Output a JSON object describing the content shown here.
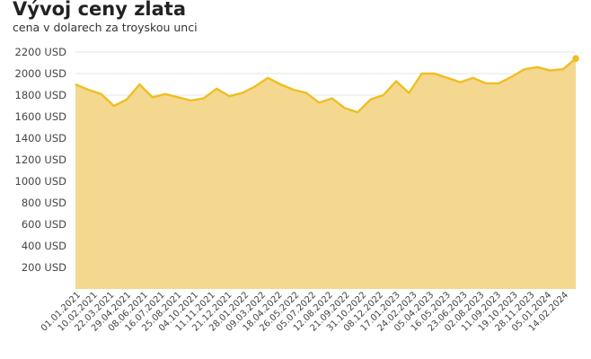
{
  "title": "Vývoj ceny zlata",
  "subtitle": "cena v dolarech za troyskou unci",
  "chart_data": {
    "type": "area",
    "ylim": [
      0,
      2200
    ],
    "yticks": [
      200,
      400,
      600,
      800,
      1000,
      1200,
      1400,
      1600,
      1800,
      2000,
      2200
    ],
    "ytick_suffix": " USD",
    "xlabels": [
      "01.01.2021",
      "10.02.2021",
      "22.03.2021",
      "29.04.2021",
      "08.06.2021",
      "16.07.2021",
      "25.08.2021",
      "04.10.2021",
      "11.11.2021",
      "21.12.2021",
      "28.01.2022",
      "09.03.2022",
      "18.04.2022",
      "26.05.2022",
      "05.07.2022",
      "12.08.2022",
      "21.09.2022",
      "31.10.2022",
      "08.12.2022",
      "17.01.2023",
      "24.02.2023",
      "05.04.2023",
      "16.05.2023",
      "23.06.2023",
      "02.08.2023",
      "11.09.2023",
      "19.10.2023",
      "28.11.2023",
      "05.01.2024",
      "14.02.2024"
    ],
    "x": [
      "2021-01",
      "2021-01",
      "2021-02",
      "2021-03",
      "2021-04",
      "2021-05",
      "2021-06",
      "2021-07",
      "2021-08",
      "2021-09",
      "2021-10",
      "2021-11",
      "2021-12",
      "2022-01",
      "2022-02",
      "2022-03",
      "2022-04",
      "2022-05",
      "2022-06",
      "2022-07",
      "2022-08",
      "2022-09",
      "2022-10",
      "2022-11",
      "2022-12",
      "2023-01",
      "2023-02",
      "2023-03",
      "2023-04",
      "2023-05",
      "2023-06",
      "2023-07",
      "2023-08",
      "2023-09",
      "2023-10",
      "2023-11",
      "2023-12",
      "2024-01",
      "2024-02",
      "2024-03"
    ],
    "series": [
      {
        "values": [
          1900,
          1850,
          1810,
          1700,
          1760,
          1900,
          1780,
          1810,
          1780,
          1750,
          1770,
          1860,
          1790,
          1820,
          1880,
          1960,
          1900,
          1850,
          1820,
          1730,
          1770,
          1680,
          1640,
          1760,
          1800,
          1930,
          1820,
          2000,
          2000,
          1960,
          1920,
          1960,
          1910,
          1910,
          1970,
          2040,
          2060,
          2030,
          2040,
          2140
        ],
        "color": "#f0be22",
        "fill": "#f4d88f"
      }
    ],
    "grid": true,
    "legend": "none"
  }
}
